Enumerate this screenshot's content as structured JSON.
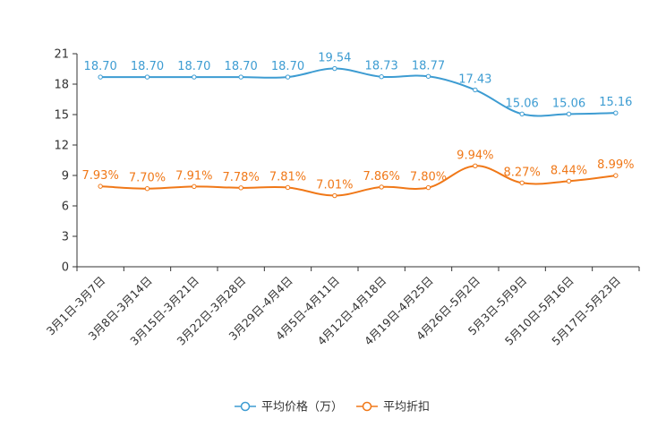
{
  "chart_data": {
    "type": "line",
    "categories": [
      "3月1日-3月7日",
      "3月8日-3月14日",
      "3月15日-3月21日",
      "3月22日-3月28日",
      "3月29日-4月4日",
      "4月5日-4月11日",
      "4月12日-4月18日",
      "4月19日-4月25日",
      "4月26日-5月2日",
      "5月3日-5月9日",
      "5月10日-5月16日",
      "5月17日-5月23日"
    ],
    "series": [
      {
        "name": "平均价格（万）",
        "values": [
          18.7,
          18.7,
          18.7,
          18.7,
          18.7,
          19.54,
          18.73,
          18.77,
          17.43,
          15.06,
          15.06,
          15.16
        ],
        "labels": [
          "18.70",
          "18.70",
          "18.70",
          "18.70",
          "18.70",
          "19.54",
          "18.73",
          "18.77",
          "17.43",
          "15.06",
          "15.06",
          "15.16"
        ],
        "color": "#3d9cd2"
      },
      {
        "name": "平均折扣",
        "values": [
          7.93,
          7.7,
          7.91,
          7.78,
          7.81,
          7.01,
          7.86,
          7.8,
          9.94,
          8.27,
          8.44,
          8.99
        ],
        "labels": [
          "7.93%",
          "7.70%",
          "7.91%",
          "7.78%",
          "7.81%",
          "7.01%",
          "7.86%",
          "7.80%",
          "9.94%",
          "8.27%",
          "8.44%",
          "8.99%"
        ],
        "color": "#f07818"
      }
    ],
    "yticks": [
      "0",
      "3",
      "6",
      "9",
      "12",
      "15",
      "18",
      "21"
    ],
    "ylim": [
      0,
      21
    ],
    "title": "",
    "xlabel": "",
    "ylabel": "",
    "grid": false,
    "legend_position": "bottom-center",
    "axis_color": "#333333"
  }
}
